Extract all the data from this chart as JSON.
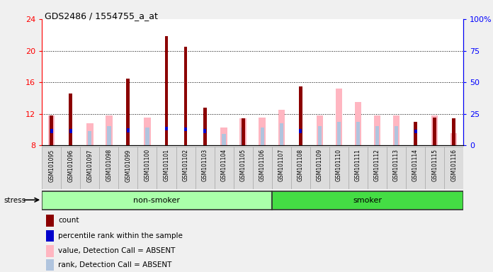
{
  "title": "GDS2486 / 1554755_a_at",
  "samples": [
    "GSM101095",
    "GSM101096",
    "GSM101097",
    "GSM101098",
    "GSM101099",
    "GSM101100",
    "GSM101101",
    "GSM101102",
    "GSM101103",
    "GSM101104",
    "GSM101105",
    "GSM101106",
    "GSM101107",
    "GSM101108",
    "GSM101109",
    "GSM101110",
    "GSM101111",
    "GSM101112",
    "GSM101113",
    "GSM101114",
    "GSM101115",
    "GSM101116"
  ],
  "count_vals": [
    11.8,
    14.6,
    0,
    0,
    16.5,
    0,
    21.8,
    20.5,
    12.8,
    0,
    11.4,
    0,
    0,
    15.5,
    0,
    0,
    0,
    0,
    0,
    11.0,
    11.5,
    11.4
  ],
  "prank_vals": [
    11.5,
    11.3,
    0,
    0,
    12.0,
    0,
    13.5,
    12.8,
    11.3,
    0,
    0,
    0,
    0,
    11.4,
    0,
    11.7,
    0,
    0,
    0,
    11.2,
    0,
    0
  ],
  "absent_value": [
    11.8,
    0,
    10.8,
    11.8,
    0,
    11.5,
    0,
    0,
    0,
    10.3,
    11.4,
    11.5,
    12.5,
    0,
    11.8,
    15.2,
    13.5,
    11.8,
    11.8,
    0,
    11.8,
    9.6
  ],
  "absent_rank": [
    10.3,
    0,
    9.8,
    10.5,
    0,
    10.3,
    0,
    0,
    0,
    9.5,
    10.3,
    10.3,
    10.8,
    0,
    10.5,
    11.0,
    11.0,
    10.5,
    10.5,
    0,
    10.5,
    0
  ],
  "ylim_left": [
    8,
    24
  ],
  "ylim_right": [
    0,
    100
  ],
  "left_ticks": [
    8,
    12,
    16,
    20,
    24
  ],
  "right_ticks": [
    0,
    25,
    50,
    75,
    100
  ],
  "non_smoker_count": 12,
  "smoker_count": 10,
  "color_count": "#8B0000",
  "color_prank": "#0000CC",
  "color_absent_value": "#FFB6C1",
  "color_absent_rank": "#B0C4DE",
  "nonsmoker_color": "#AAFFAA",
  "smoker_color": "#44DD44",
  "legend_items": [
    {
      "label": "count",
      "color": "#8B0000"
    },
    {
      "label": "percentile rank within the sample",
      "color": "#0000CC"
    },
    {
      "label": "value, Detection Call = ABSENT",
      "color": "#FFB6C1"
    },
    {
      "label": "rank, Detection Call = ABSENT",
      "color": "#B0C4DE"
    }
  ]
}
